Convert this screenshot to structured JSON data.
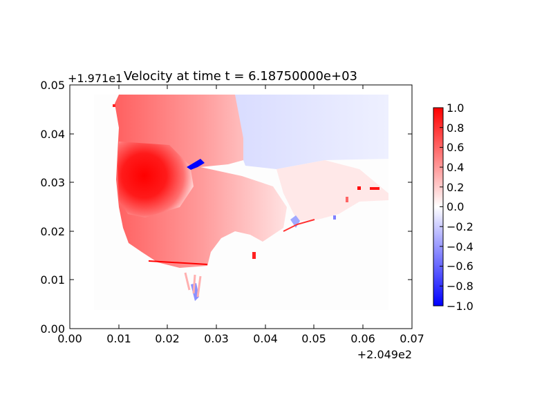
{
  "chart_data": {
    "type": "heatmap",
    "title": "Velocity at time t = 6.18750000e+03",
    "xlabel": "",
    "ylabel": "",
    "x_offset_label": "+2.049e2",
    "y_offset_label": "+1.971e1",
    "xlim": [
      0.0,
      0.07
    ],
    "ylim": [
      0.0,
      0.05
    ],
    "x_ticks": [
      "0.00",
      "0.01",
      "0.02",
      "0.03",
      "0.04",
      "0.05",
      "0.06",
      "0.07"
    ],
    "y_ticks": [
      "0.00",
      "0.01",
      "0.02",
      "0.03",
      "0.04",
      "0.05"
    ],
    "colorbar": {
      "range": [
        -1.0,
        1.0
      ],
      "colormap": "bwr",
      "ticks": [
        "1.0",
        "0.8",
        "0.6",
        "0.4",
        "0.2",
        "0.0",
        "−0.2",
        "−0.4",
        "−0.6",
        "−0.8",
        "−1.0"
      ]
    },
    "field_regions": [
      {
        "x": [
          0.0098,
          0.052
        ],
        "y": [
          0.012,
          0.048
        ],
        "value": 0.35
      },
      {
        "x": [
          0.01,
          0.025
        ],
        "y": [
          0.018,
          0.041
        ],
        "value": 0.95
      },
      {
        "x": [
          0.035,
          0.065
        ],
        "y": [
          0.033,
          0.048
        ],
        "value": -0.08
      },
      {
        "x": [
          0.045,
          0.065
        ],
        "y": [
          0.027,
          0.034
        ],
        "value": 0.12
      }
    ],
    "grid": false
  }
}
